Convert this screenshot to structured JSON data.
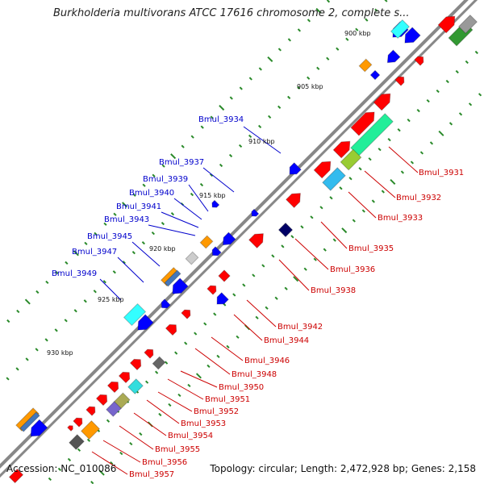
{
  "title": "Burkholderia multivorans ATCC 17616 chromosome 2, complete s...",
  "footer": {
    "accession": "Accession: NC_010086",
    "topology": "Topology: circular; Length: 2,472,928 bp; Genes: 2,158"
  },
  "scale_labels": [
    "900 kbp",
    "905 kbp",
    "910 kbp",
    "915 kbp",
    "920 kbp",
    "925 kbp",
    "930 kbp"
  ],
  "gene_labels_left": [
    "Bmul_3934",
    "Bmul_3937",
    "Bmul_3939",
    "Bmul_3940",
    "Bmul_3941",
    "Bmul_3943",
    "Bmul_3945",
    "Bmul_3947",
    "Bmul_3949"
  ],
  "gene_labels_right": [
    "Bmul_3931",
    "Bmul_3932",
    "Bmul_3933",
    "Bmul_3935",
    "Bmul_3936",
    "Bmul_3938",
    "Bmul_3942",
    "Bmul_3944",
    "Bmul_3946",
    "Bmul_3948",
    "Bmul_3950",
    "Bmul_3951",
    "Bmul_3952",
    "Bmul_3953",
    "Bmul_3954",
    "Bmul_3955",
    "Bmul_3956",
    "Bmul_3957"
  ],
  "colors": {
    "left_label": "#0000cc",
    "right_label": "#cc0000",
    "forward_gene": "#ff0000",
    "reverse_gene": "#0000ff",
    "backbone": "#777777",
    "tick": "#2a8a2a"
  }
}
